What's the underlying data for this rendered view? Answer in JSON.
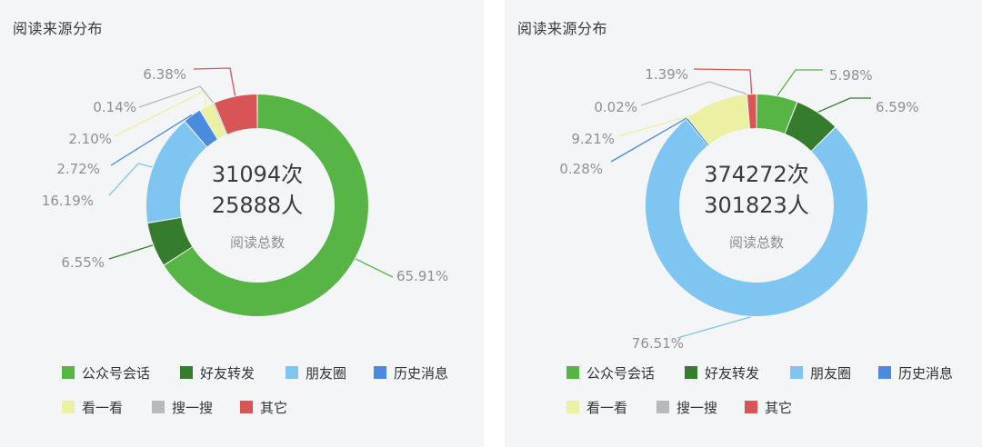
{
  "legend_labels": [
    "公众号会话",
    "好友转发",
    "朋友圈",
    "历史消息",
    "看一看",
    "搜一搜",
    "其它"
  ],
  "colors": [
    "#56b545",
    "#357c2c",
    "#7ec6f1",
    "#4a8be0",
    "#ecf0a2",
    "#b9b9b9",
    "#d85455"
  ],
  "chart_data": [
    {
      "type": "pie",
      "variant": "donut",
      "title": "阅读来源分布",
      "center_lines": [
        "31094次",
        "25888人"
      ],
      "center_caption": "阅读总数",
      "categories": [
        "公众号会话",
        "好友转发",
        "朋友圈",
        "历史消息",
        "看一看",
        "搜一搜",
        "其它"
      ],
      "values": [
        65.91,
        6.55,
        16.19,
        2.72,
        2.1,
        0.14,
        6.38
      ],
      "labels": [
        "65.91%",
        "6.55%",
        "16.19%",
        "2.72%",
        "2.10%",
        "0.14%",
        "6.38%"
      ],
      "legend_position": "bottom"
    },
    {
      "type": "pie",
      "variant": "donut",
      "title": "阅读来源分布",
      "center_lines": [
        "374272次",
        "301823人"
      ],
      "center_caption": "阅读总数",
      "categories": [
        "公众号会话",
        "好友转发",
        "朋友圈",
        "历史消息",
        "看一看",
        "搜一搜",
        "其它"
      ],
      "values": [
        5.98,
        6.59,
        76.51,
        0.28,
        9.21,
        0.02,
        1.39
      ],
      "labels": [
        "5.98%",
        "6.59%",
        "76.51%",
        "0.28%",
        "9.21%",
        "0.02%",
        "1.39%"
      ],
      "legend_position": "bottom"
    }
  ]
}
